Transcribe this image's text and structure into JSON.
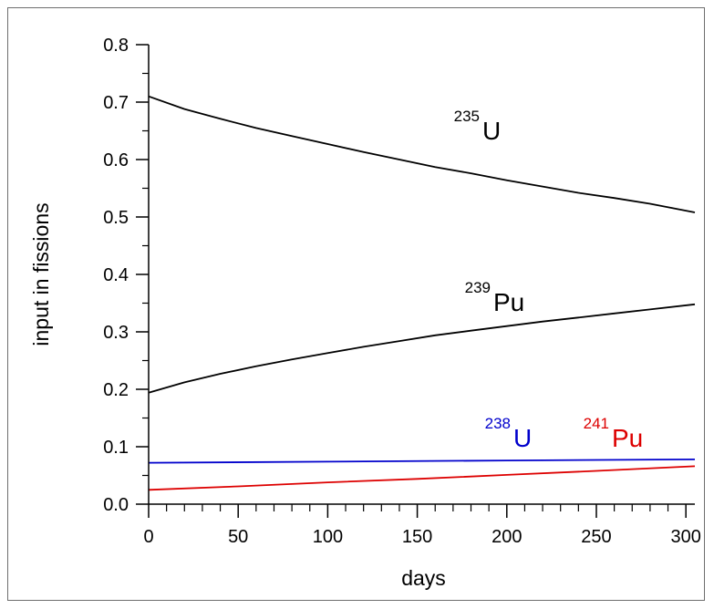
{
  "chart_data": {
    "type": "line",
    "title": "",
    "xlabel": "days",
    "ylabel": "input in fissions",
    "xlim": [
      0,
      305
    ],
    "ylim": [
      0,
      0.8
    ],
    "x_major_ticks": [
      0,
      50,
      100,
      150,
      200,
      250,
      300
    ],
    "x_minor_step": 10,
    "y_major_ticks": [
      0.0,
      0.1,
      0.2,
      0.3,
      0.4,
      0.5,
      0.6,
      0.7,
      0.8
    ],
    "y_minor_step": 0.05,
    "x_tick_labels": [
      "0",
      "50",
      "100",
      "150",
      "200",
      "250",
      "300"
    ],
    "y_tick_labels": [
      "0.0",
      "0.1",
      "0.2",
      "0.3",
      "0.4",
      "0.5",
      "0.6",
      "0.7",
      "0.8"
    ],
    "grid": false,
    "legend": "none",
    "series": [
      {
        "mass": "235",
        "symbol": "U",
        "color": "#000000",
        "x": [
          0,
          20,
          40,
          60,
          80,
          100,
          120,
          140,
          160,
          180,
          200,
          220,
          240,
          260,
          280,
          305
        ],
        "y": [
          0.71,
          0.688,
          0.671,
          0.655,
          0.641,
          0.627,
          0.613,
          0.6,
          0.587,
          0.576,
          0.564,
          0.553,
          0.542,
          0.533,
          0.523,
          0.508
        ]
      },
      {
        "mass": "239",
        "symbol": "Pu",
        "color": "#000000",
        "x": [
          0,
          20,
          40,
          60,
          80,
          100,
          120,
          140,
          160,
          180,
          200,
          220,
          240,
          260,
          280,
          305
        ],
        "y": [
          0.194,
          0.212,
          0.227,
          0.24,
          0.252,
          0.263,
          0.274,
          0.284,
          0.294,
          0.302,
          0.31,
          0.318,
          0.325,
          0.332,
          0.339,
          0.348
        ]
      },
      {
        "mass": "238",
        "symbol": "U",
        "color": "#0000cc",
        "x": [
          0,
          100,
          200,
          305
        ],
        "y": [
          0.072,
          0.074,
          0.076,
          0.078
        ]
      },
      {
        "mass": "241",
        "symbol": "Pu",
        "color": "#dd0000",
        "x": [
          0,
          50,
          100,
          150,
          200,
          250,
          305
        ],
        "y": [
          0.025,
          0.031,
          0.038,
          0.044,
          0.051,
          0.058,
          0.066
        ]
      }
    ]
  }
}
